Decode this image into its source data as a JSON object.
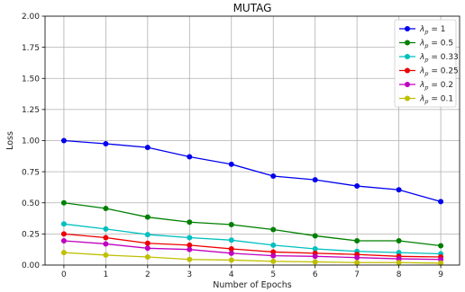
{
  "chart_data": {
    "type": "line",
    "title": "MUTAG",
    "xlabel": "Number of Epochs",
    "ylabel": "Loss",
    "x": [
      0,
      1,
      2,
      3,
      4,
      5,
      6,
      7,
      8,
      9
    ],
    "xlim": [
      -0.45,
      9.45
    ],
    "ylim": [
      0,
      2.0
    ],
    "xticks": [
      "0",
      "1",
      "2",
      "3",
      "4",
      "5",
      "6",
      "7",
      "8",
      "9"
    ],
    "yticks": [
      "0.00",
      "0.25",
      "0.50",
      "0.75",
      "1.00",
      "1.25",
      "1.50",
      "1.75",
      "2.00"
    ],
    "grid": true,
    "legend_position": "top-right",
    "series": [
      {
        "name": "λ_p = 1",
        "sub": "p",
        "value_label": "1",
        "color": "#0000ee",
        "values": [
          1.0,
          0.975,
          0.945,
          0.87,
          0.81,
          0.715,
          0.685,
          0.635,
          0.605,
          0.51
        ]
      },
      {
        "name": "λ_p = 0.5",
        "sub": "p",
        "value_label": "0.5",
        "color": "#007f00",
        "values": [
          0.5,
          0.455,
          0.385,
          0.345,
          0.325,
          0.285,
          0.235,
          0.195,
          0.195,
          0.155
        ]
      },
      {
        "name": "λ_p = 0.33",
        "sub": "p",
        "value_label": "0.33",
        "color": "#00bfbf",
        "values": [
          0.33,
          0.29,
          0.245,
          0.22,
          0.2,
          0.16,
          0.13,
          0.11,
          0.1,
          0.09
        ]
      },
      {
        "name": "λ_p = 0.25",
        "sub": "p",
        "value_label": "0.25",
        "color": "#ee0000",
        "values": [
          0.25,
          0.22,
          0.175,
          0.16,
          0.13,
          0.105,
          0.095,
          0.085,
          0.07,
          0.065
        ]
      },
      {
        "name": "λ_p = 0.2",
        "sub": "p",
        "value_label": "0.2",
        "color": "#bf00bf",
        "values": [
          0.195,
          0.17,
          0.135,
          0.125,
          0.095,
          0.075,
          0.07,
          0.06,
          0.05,
          0.045
        ]
      },
      {
        "name": "λ_p = 0.1",
        "sub": "p",
        "value_label": "0.1",
        "color": "#bfbf00",
        "values": [
          0.1,
          0.08,
          0.065,
          0.045,
          0.04,
          0.03,
          0.025,
          0.02,
          0.02,
          0.015
        ]
      }
    ]
  }
}
